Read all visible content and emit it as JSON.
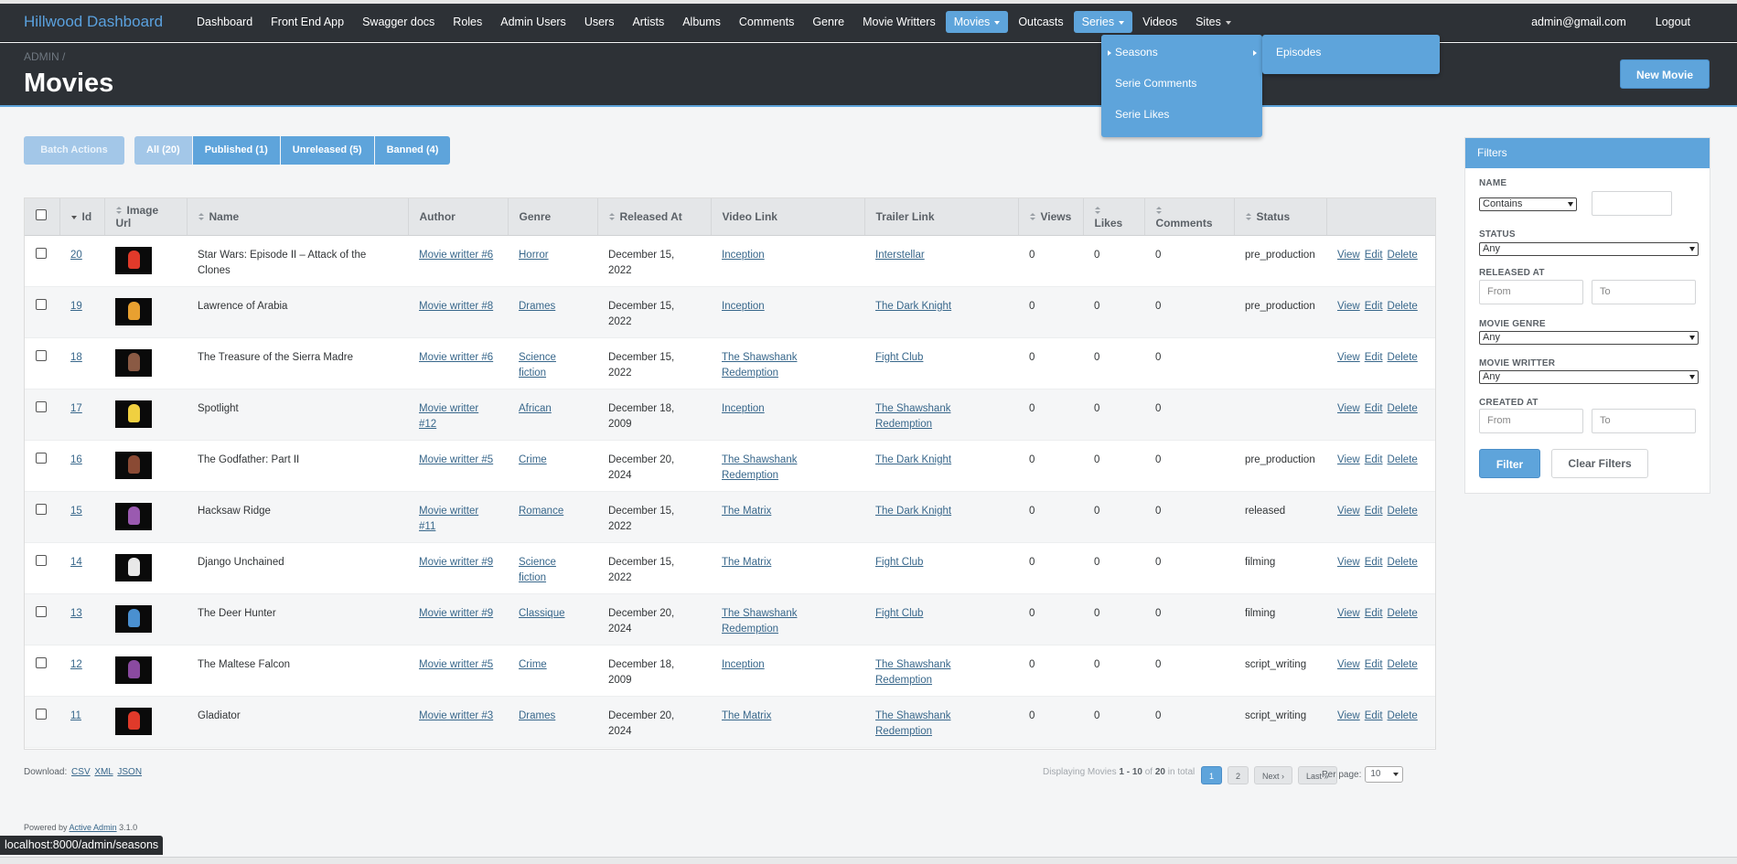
{
  "brand": "Hillwood Dashboard",
  "nav": [
    {
      "label": "Dashboard"
    },
    {
      "label": "Front End App"
    },
    {
      "label": "Swagger docs"
    },
    {
      "label": "Roles"
    },
    {
      "label": "Admin Users"
    },
    {
      "label": "Users"
    },
    {
      "label": "Artists"
    },
    {
      "label": "Albums"
    },
    {
      "label": "Comments"
    },
    {
      "label": "Genre"
    },
    {
      "label": "Movie Writters"
    },
    {
      "label": "Movies",
      "active": true,
      "caret": true
    },
    {
      "label": "Outcasts"
    },
    {
      "label": "Series",
      "active": true,
      "caret": true
    },
    {
      "label": "Videos"
    },
    {
      "label": "Sites",
      "caret": true
    }
  ],
  "user": {
    "email": "admin@gmail.com",
    "logout": "Logout"
  },
  "breadcrumb": "ADMIN /",
  "title": "Movies",
  "new_button": "New Movie",
  "series_menu": {
    "items": [
      "Seasons",
      "Serie Comments",
      "Serie Likes"
    ],
    "submenu": [
      "Episodes"
    ]
  },
  "batch_actions": "Batch Actions",
  "scopes": [
    {
      "label": "All (20)",
      "selected": true
    },
    {
      "label": "Published (1)"
    },
    {
      "label": "Unreleased (5)"
    },
    {
      "label": "Banned (4)"
    }
  ],
  "columns": [
    "Id",
    "Image Url",
    "Name",
    "Author",
    "Genre",
    "Released At",
    "Video Link",
    "Trailer Link",
    "Views",
    "Likes",
    "Comments",
    "Status"
  ],
  "actions": [
    "View",
    "Edit",
    "Delete"
  ],
  "rows": [
    {
      "id": "20",
      "name": "Star Wars: Episode II – Attack of the Clones",
      "author": "Movie writter #6",
      "genre": "Horror",
      "released": "December 15, 2022",
      "video": "Inception",
      "trailer": "Interstellar",
      "views": "0",
      "likes": "0",
      "comments": "0",
      "status": "pre_production",
      "thumb_color": "#e03a2a"
    },
    {
      "id": "19",
      "name": "Lawrence of Arabia",
      "author": "Movie writter #8",
      "genre": "Drames",
      "released": "December 15, 2022",
      "video": "Inception",
      "trailer": "The Dark Knight",
      "views": "0",
      "likes": "0",
      "comments": "0",
      "status": "pre_production",
      "thumb_color": "#e8a030"
    },
    {
      "id": "18",
      "name": "The Treasure of the Sierra Madre",
      "author": "Movie writter #6",
      "genre": "Science fiction",
      "released": "December 15, 2022",
      "video": "The Shawshank Redemption",
      "trailer": "Fight Club",
      "views": "0",
      "likes": "0",
      "comments": "0",
      "status": "",
      "thumb_color": "#8a5a44"
    },
    {
      "id": "17",
      "name": "Spotlight",
      "author": "Movie writter #12",
      "genre": "African",
      "released": "December 18, 2009",
      "video": "Inception",
      "trailer": "The Shawshank Redemption",
      "views": "0",
      "likes": "0",
      "comments": "0",
      "status": "",
      "thumb_color": "#f0d040"
    },
    {
      "id": "16",
      "name": "The Godfather: Part II",
      "author": "Movie writter #5",
      "genre": "Crime",
      "released": "December 20, 2024",
      "video": "The Shawshank Redemption",
      "trailer": "The Dark Knight",
      "views": "0",
      "likes": "0",
      "comments": "0",
      "status": "pre_production",
      "thumb_color": "#8a4a34"
    },
    {
      "id": "15",
      "name": "Hacksaw Ridge",
      "author": "Movie writter #11",
      "genre": "Romance",
      "released": "December 15, 2022",
      "video": "The Matrix",
      "trailer": "The Dark Knight",
      "views": "0",
      "likes": "0",
      "comments": "0",
      "status": "released",
      "thumb_color": "#9a5ab0"
    },
    {
      "id": "14",
      "name": "Django Unchained",
      "author": "Movie writter #9",
      "genre": "Science fiction",
      "released": "December 15, 2022",
      "video": "The Matrix",
      "trailer": "Fight Club",
      "views": "0",
      "likes": "0",
      "comments": "0",
      "status": "filming",
      "thumb_color": "#e8e8e8"
    },
    {
      "id": "13",
      "name": "The Deer Hunter",
      "author": "Movie writter #9",
      "genre": "Classique",
      "released": "December 20, 2024",
      "video": "The Shawshank Redemption",
      "trailer": "Fight Club",
      "views": "0",
      "likes": "0",
      "comments": "0",
      "status": "filming",
      "thumb_color": "#4a90d0"
    },
    {
      "id": "12",
      "name": "The Maltese Falcon",
      "author": "Movie writter #5",
      "genre": "Crime",
      "released": "December 18, 2009",
      "video": "Inception",
      "trailer": "The Shawshank Redemption",
      "views": "0",
      "likes": "0",
      "comments": "0",
      "status": "script_writing",
      "thumb_color": "#8a4aa0"
    },
    {
      "id": "11",
      "name": "Gladiator",
      "author": "Movie writter #3",
      "genre": "Drames",
      "released": "December 20, 2024",
      "video": "The Matrix",
      "trailer": "The Shawshank Redemption",
      "views": "0",
      "likes": "0",
      "comments": "0",
      "status": "script_writing",
      "thumb_color": "#e03a2a"
    }
  ],
  "downloads": {
    "label": "Download:",
    "formats": [
      "CSV",
      "XML",
      "JSON"
    ]
  },
  "pagination": {
    "prefix": "Displaying Movies",
    "range": "1 - 10",
    "of": "of",
    "total": "20",
    "suffix": "in total",
    "pages": [
      "1",
      "2"
    ],
    "next": "Next ›",
    "last": "Last »",
    "per_page_label": "Per page:",
    "per_page": "10"
  },
  "footer": {
    "text": "Powered by",
    "link": "Active Admin",
    "version": "3.1.0"
  },
  "status_url": "localhost:8000/admin/seasons",
  "filters": {
    "title": "Filters",
    "name_label": "NAME",
    "name_op": "Contains",
    "status_label": "STATUS",
    "status_value": "Any",
    "released_label": "RELEASED AT",
    "from": "From",
    "to": "To",
    "genre_label": "MOVIE GENRE",
    "genre_value": "Any",
    "writter_label": "MOVIE WRITTER",
    "writter_value": "Any",
    "created_label": "CREATED AT",
    "filter_button": "Filter",
    "clear_button": "Clear Filters"
  }
}
